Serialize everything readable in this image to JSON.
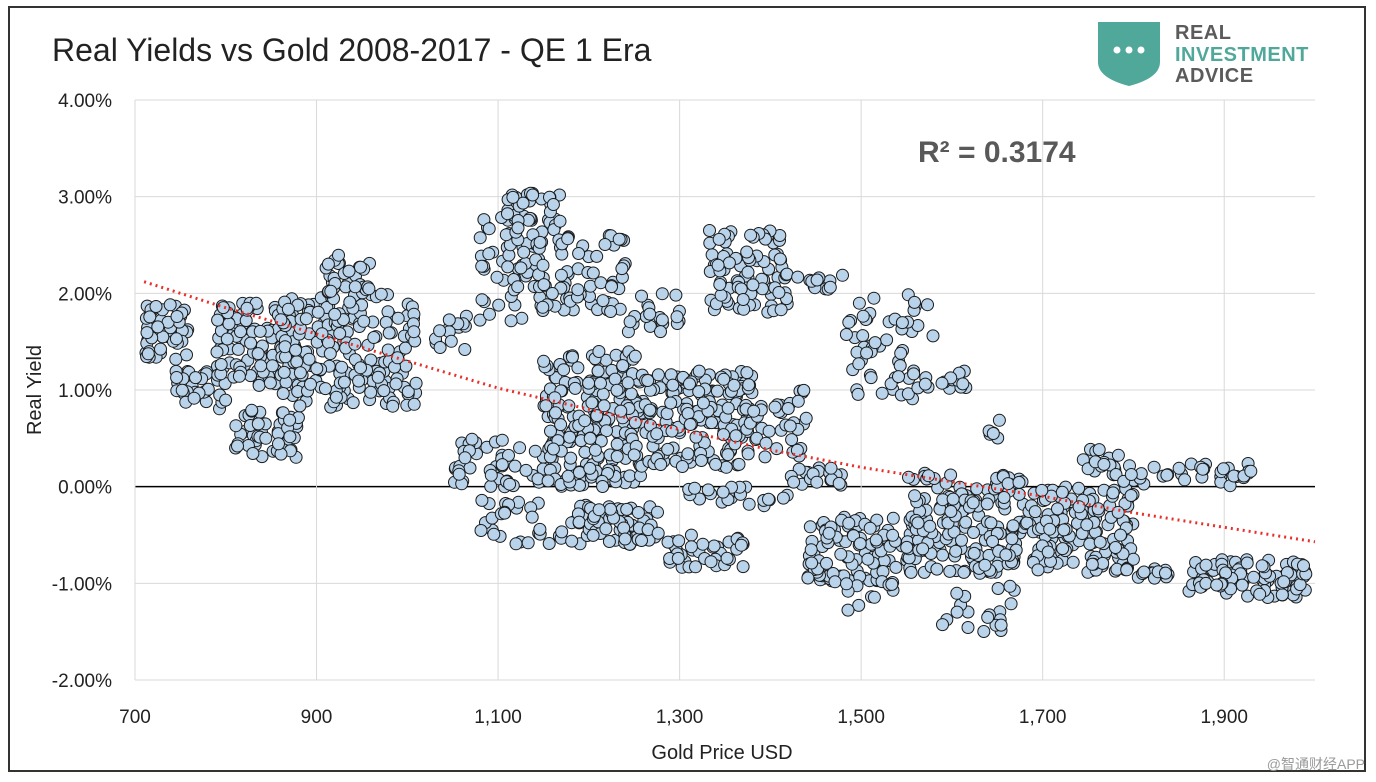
{
  "chart_data": {
    "type": "scatter",
    "title": "Real Yields vs Gold 2008-2017 - QE 1 Era",
    "xlabel": "Gold Price USD",
    "ylabel": "Real Yield",
    "xlim": [
      700,
      2000
    ],
    "ylim": [
      -2.0,
      4.0
    ],
    "x_ticks": [
      700,
      900,
      1100,
      1300,
      1500,
      1700,
      1900
    ],
    "x_tick_labels": [
      "700",
      "900",
      "1,100",
      "1,300",
      "1,500",
      "1,700",
      "1,900"
    ],
    "y_ticks": [
      4,
      3,
      2,
      1,
      0,
      -1,
      -2
    ],
    "y_tick_labels": [
      "4.00%",
      "3.00%",
      "2.00%",
      "1.00%",
      "0.00%",
      "-1.00%",
      "-2.00%"
    ],
    "annotation": "R² = 0.3174",
    "trendline": {
      "type": "polynomial",
      "color": "#e8302a",
      "points": [
        [
          710,
          2.12
        ],
        [
          800,
          1.85
        ],
        [
          900,
          1.58
        ],
        [
          1000,
          1.3
        ],
        [
          1100,
          1.02
        ],
        [
          1200,
          0.8
        ],
        [
          1300,
          0.59
        ],
        [
          1400,
          0.38
        ],
        [
          1500,
          0.2
        ],
        [
          1600,
          0.05
        ],
        [
          1700,
          -0.1
        ],
        [
          1800,
          -0.27
        ],
        [
          1900,
          -0.42
        ],
        [
          2000,
          -0.57
        ]
      ]
    },
    "clusters": [
      {
        "x": [
          710,
          760
        ],
        "y": [
          1.3,
          1.9
        ],
        "n": 45
      },
      {
        "x": [
          740,
          800
        ],
        "y": [
          0.8,
          1.2
        ],
        "n": 30
      },
      {
        "x": [
          790,
          880
        ],
        "y": [
          1.0,
          1.9
        ],
        "n": 120
      },
      {
        "x": [
          810,
          880
        ],
        "y": [
          0.3,
          0.8
        ],
        "n": 50
      },
      {
        "x": [
          860,
          1010
        ],
        "y": [
          0.8,
          2.0
        ],
        "n": 200
      },
      {
        "x": [
          910,
          960
        ],
        "y": [
          2.0,
          2.4
        ],
        "n": 30
      },
      {
        "x": [
          1030,
          1070
        ],
        "y": [
          1.4,
          1.8
        ],
        "n": 15
      },
      {
        "x": [
          1080,
          1150
        ],
        "y": [
          1.7,
          2.8
        ],
        "n": 60
      },
      {
        "x": [
          1110,
          1170
        ],
        "y": [
          2.6,
          3.05
        ],
        "n": 35
      },
      {
        "x": [
          1140,
          1240
        ],
        "y": [
          1.8,
          2.6
        ],
        "n": 70
      },
      {
        "x": [
          1240,
          1300
        ],
        "y": [
          1.6,
          2.0
        ],
        "n": 20
      },
      {
        "x": [
          1330,
          1420
        ],
        "y": [
          1.8,
          2.7
        ],
        "n": 90
      },
      {
        "x": [
          1400,
          1480
        ],
        "y": [
          2.0,
          2.2
        ],
        "n": 15
      },
      {
        "x": [
          1480,
          1580
        ],
        "y": [
          1.4,
          2.0
        ],
        "n": 30
      },
      {
        "x": [
          1490,
          1560
        ],
        "y": [
          0.9,
          1.5
        ],
        "n": 25
      },
      {
        "x": [
          1560,
          1620
        ],
        "y": [
          1.0,
          1.2
        ],
        "n": 15
      },
      {
        "x": [
          1050,
          1150
        ],
        "y": [
          0.0,
          0.5
        ],
        "n": 45
      },
      {
        "x": [
          1150,
          1260
        ],
        "y": [
          0.0,
          1.4
        ],
        "n": 230
      },
      {
        "x": [
          1260,
          1380
        ],
        "y": [
          0.2,
          1.2
        ],
        "n": 170
      },
      {
        "x": [
          1380,
          1440
        ],
        "y": [
          0.3,
          1.0
        ],
        "n": 35
      },
      {
        "x": [
          1420,
          1480
        ],
        "y": [
          0.0,
          0.2
        ],
        "n": 20
      },
      {
        "x": [
          1080,
          1200
        ],
        "y": [
          -0.6,
          -0.1
        ],
        "n": 40
      },
      {
        "x": [
          1200,
          1280
        ],
        "y": [
          -0.6,
          -0.2
        ],
        "n": 60
      },
      {
        "x": [
          1280,
          1370
        ],
        "y": [
          -0.85,
          -0.5
        ],
        "n": 40
      },
      {
        "x": [
          1310,
          1420
        ],
        "y": [
          -0.2,
          0.0
        ],
        "n": 25
      },
      {
        "x": [
          1440,
          1560
        ],
        "y": [
          -1.0,
          -0.3
        ],
        "n": 100
      },
      {
        "x": [
          1480,
          1540
        ],
        "y": [
          -1.3,
          -1.0
        ],
        "n": 10
      },
      {
        "x": [
          1550,
          1680
        ],
        "y": [
          -0.9,
          0.15
        ],
        "n": 180
      },
      {
        "x": [
          1580,
          1680
        ],
        "y": [
          -1.5,
          -1.0
        ],
        "n": 20
      },
      {
        "x": [
          1640,
          1660
        ],
        "y": [
          0.4,
          0.7
        ],
        "n": 6
      },
      {
        "x": [
          1680,
          1800
        ],
        "y": [
          -0.9,
          0.0
        ],
        "n": 150
      },
      {
        "x": [
          1740,
          1790
        ],
        "y": [
          0.1,
          0.4
        ],
        "n": 20
      },
      {
        "x": [
          1780,
          1930
        ],
        "y": [
          0.0,
          0.25
        ],
        "n": 35
      },
      {
        "x": [
          1780,
          1840
        ],
        "y": [
          -0.95,
          -0.85
        ],
        "n": 15
      },
      {
        "x": [
          1860,
          1990
        ],
        "y": [
          -1.15,
          -0.75
        ],
        "n": 90
      }
    ]
  },
  "logo": {
    "line1": "REAL",
    "line2": "INVESTMENT",
    "line3": "ADVICE",
    "color": "#4fa89a"
  },
  "watermark": "@智通财经APP",
  "colors": {
    "marker_fill": "#b9d3ea",
    "marker_stroke": "#1a1a1a",
    "trend": "#e8302a",
    "grid": "#d9d9d9"
  }
}
